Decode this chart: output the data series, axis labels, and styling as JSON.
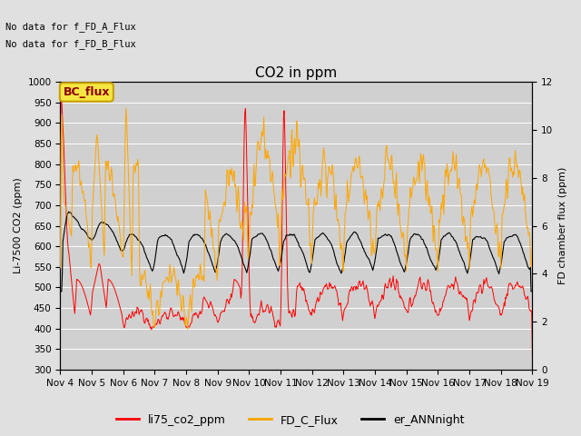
{
  "title": "CO2 in ppm",
  "ylabel_left": "Li-7500 CO2 (ppm)",
  "ylabel_right": "FD chamber flux (ppm)",
  "ylim_left": [
    300,
    1000
  ],
  "ylim_right": [
    0,
    12
  ],
  "annotation1": "No data for f_FD_A_Flux",
  "annotation2": "No data for f_FD_B_Flux",
  "bc_flux_label": "BC_flux",
  "legend_labels": [
    "li75_co2_ppm",
    "FD_C_Flux",
    "er_ANNnight"
  ],
  "line_colors": [
    "red",
    "orange",
    "black"
  ],
  "xtick_labels": [
    "Nov 4",
    "Nov 5",
    "Nov 6",
    "Nov 7",
    "Nov 8",
    "Nov 9",
    "Nov 10",
    "Nov 11",
    "Nov 12",
    "Nov 13",
    "Nov 14",
    "Nov 15",
    "Nov 16",
    "Nov 17",
    "Nov 18",
    "Nov 19"
  ],
  "fig_bg": "#e0e0e0",
  "axes_bg": "#d0d0d0",
  "title_fontsize": 11,
  "label_fontsize": 8,
  "tick_fontsize": 7.5,
  "annot_fontsize": 7.5
}
